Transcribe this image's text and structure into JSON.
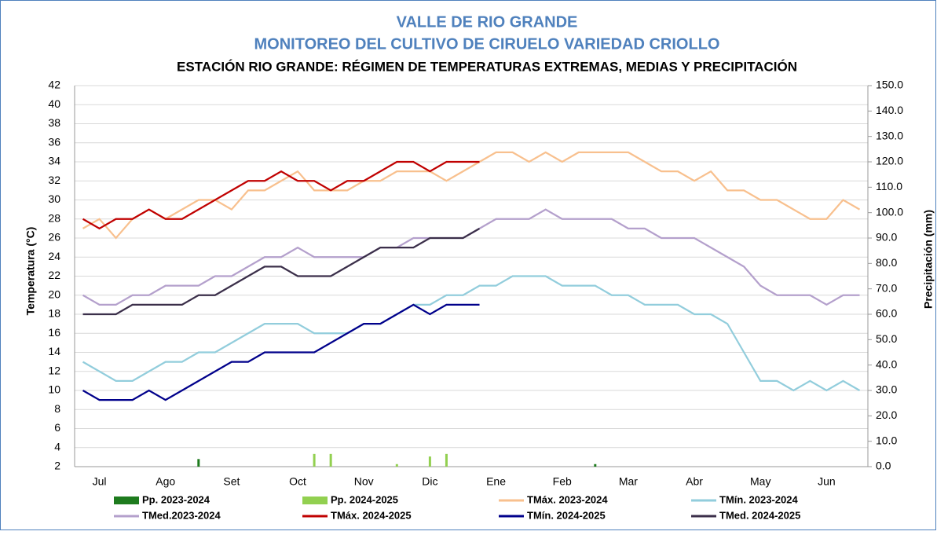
{
  "chart_data": {
    "type": "line",
    "title": "VALLE DE RIO GRANDE",
    "subtitle": "MONITOREO DEL CULTIVO DE CIRUELO VARIEDAD CRIOLLO",
    "subtitle2": "ESTACIÓN RIO GRANDE: RÉGIMEN DE TEMPERATURAS EXTREMAS, MEDIAS Y PRECIPITACIÓN",
    "y_label": "Temperatura (°C)",
    "y2_label": "Precipitación (mm)",
    "grid": true,
    "categories": [
      null,
      "Jul",
      null,
      null,
      null,
      "Ago",
      null,
      null,
      null,
      "Set",
      null,
      null,
      null,
      "Oct",
      null,
      null,
      null,
      "Nov",
      null,
      null,
      null,
      "Dic",
      null,
      null,
      null,
      "Ene",
      null,
      null,
      null,
      "Feb",
      null,
      null,
      null,
      "Mar",
      null,
      null,
      null,
      "Abr",
      null,
      null,
      null,
      "May",
      null,
      null,
      null,
      "Jun",
      null,
      null
    ],
    "ylim": [
      2,
      42
    ],
    "yticks": [
      2,
      4,
      6,
      8,
      10,
      12,
      14,
      16,
      18,
      20,
      22,
      24,
      26,
      28,
      30,
      32,
      34,
      36,
      38,
      40,
      42
    ],
    "y2lim": [
      0,
      150
    ],
    "y2ticks": [
      {
        "value": 0,
        "label": "0.0"
      },
      {
        "value": 10,
        "label": "10.0"
      },
      {
        "value": 20,
        "label": "20.0"
      },
      {
        "value": 30,
        "label": "30.0"
      },
      {
        "value": 40,
        "label": "40.0"
      },
      {
        "value": 50,
        "label": "50.0"
      },
      {
        "value": 60,
        "label": "60.0"
      },
      {
        "value": 70,
        "label": "70.0"
      },
      {
        "value": 80,
        "label": "80.0"
      },
      {
        "value": 90,
        "label": "90.0"
      },
      {
        "value": 100,
        "label": "100.0"
      },
      {
        "value": 110,
        "label": "110.0"
      },
      {
        "value": 120,
        "label": "120.0"
      },
      {
        "value": 130,
        "label": "130.0"
      },
      {
        "value": 140,
        "label": "140.0"
      },
      {
        "value": 150,
        "label": "150.0"
      }
    ],
    "series": [
      {
        "name": "Pp. 2023-2024",
        "type": "bar",
        "axis": "y2",
        "color": "#1e7b1e",
        "values": [
          0,
          0,
          0,
          0,
          0,
          0,
          0,
          3,
          0,
          0,
          0,
          0,
          0,
          0,
          0,
          0,
          0,
          0,
          0,
          0,
          0,
          0,
          0,
          0,
          0,
          0,
          0,
          0,
          0,
          0,
          0,
          1,
          0,
          0,
          0,
          0,
          0,
          0,
          0,
          0,
          0,
          0,
          0,
          0,
          0,
          0,
          0,
          0
        ]
      },
      {
        "name": "Pp. 2024-2025",
        "type": "bar",
        "axis": "y2",
        "color": "#92d050",
        "values": [
          0,
          0,
          0,
          0,
          0,
          0,
          0,
          0,
          0,
          0,
          0,
          0,
          0,
          0,
          5,
          5,
          0,
          0,
          0,
          1,
          0,
          4,
          5,
          0,
          0,
          null,
          null,
          null,
          null,
          null,
          null,
          null,
          null,
          null,
          null,
          null,
          null,
          null,
          null,
          null,
          null,
          null,
          null,
          null,
          null,
          null,
          null,
          null
        ]
      },
      {
        "name": "TMáx. 2023-2024",
        "type": "line",
        "color": "#f8c08e",
        "values": [
          27,
          28,
          26,
          28,
          29,
          28,
          29,
          30,
          30,
          29,
          31,
          31,
          32,
          33,
          31,
          31,
          31,
          32,
          32,
          33,
          33,
          33,
          32,
          33,
          34,
          35,
          35,
          34,
          35,
          34,
          35,
          35,
          35,
          35,
          34,
          33,
          33,
          32,
          33,
          31,
          31,
          30,
          30,
          29,
          28,
          28,
          30,
          29
        ]
      },
      {
        "name": "TMín. 2023-2024",
        "type": "line",
        "color": "#92cddc",
        "values": [
          13,
          12,
          11,
          11,
          12,
          13,
          13,
          14,
          14,
          15,
          16,
          17,
          17,
          17,
          16,
          16,
          16,
          17,
          17,
          18,
          19,
          19,
          20,
          20,
          21,
          21,
          22,
          22,
          22,
          21,
          21,
          21,
          20,
          20,
          19,
          19,
          19,
          18,
          18,
          17,
          14,
          11,
          11,
          10,
          11,
          10,
          11,
          10
        ]
      },
      {
        "name": "TMed.2023-2024",
        "type": "line",
        "color": "#b4a0cc",
        "values": [
          20,
          19,
          19,
          20,
          20,
          21,
          21,
          21,
          22,
          22,
          23,
          24,
          24,
          25,
          24,
          24,
          24,
          24,
          25,
          25,
          26,
          26,
          26,
          26,
          27,
          28,
          28,
          28,
          29,
          28,
          28,
          28,
          28,
          27,
          27,
          26,
          26,
          26,
          25,
          24,
          23,
          21,
          20,
          20,
          20,
          19,
          20,
          20
        ]
      },
      {
        "name": "TMáx. 2024-2025",
        "type": "line",
        "color": "#c00000",
        "values": [
          28,
          27,
          28,
          28,
          29,
          28,
          28,
          29,
          30,
          31,
          32,
          32,
          33,
          32,
          32,
          31,
          32,
          32,
          33,
          34,
          34,
          33,
          34,
          34,
          34,
          null,
          null,
          null,
          null,
          null,
          null,
          null,
          null,
          null,
          null,
          null,
          null,
          null,
          null,
          null,
          null,
          null,
          null,
          null,
          null,
          null,
          null,
          null
        ]
      },
      {
        "name": "TMín. 2024-2025",
        "type": "line",
        "color": "#00008b",
        "values": [
          10,
          9,
          9,
          9,
          10,
          9,
          10,
          11,
          12,
          13,
          13,
          14,
          14,
          14,
          14,
          15,
          16,
          17,
          17,
          18,
          19,
          18,
          19,
          19,
          19,
          null,
          null,
          null,
          null,
          null,
          null,
          null,
          null,
          null,
          null,
          null,
          null,
          null,
          null,
          null,
          null,
          null,
          null,
          null,
          null,
          null,
          null,
          null
        ]
      },
      {
        "name": "TMed. 2024-2025",
        "type": "line",
        "color": "#3b2f4a",
        "values": [
          18,
          18,
          18,
          19,
          19,
          19,
          19,
          20,
          20,
          21,
          22,
          23,
          23,
          22,
          22,
          22,
          23,
          24,
          25,
          25,
          25,
          26,
          26,
          26,
          27,
          null,
          null,
          null,
          null,
          null,
          null,
          null,
          null,
          null,
          null,
          null,
          null,
          null,
          null,
          null,
          null,
          null,
          null,
          null,
          null,
          null,
          null,
          null
        ]
      }
    ]
  }
}
